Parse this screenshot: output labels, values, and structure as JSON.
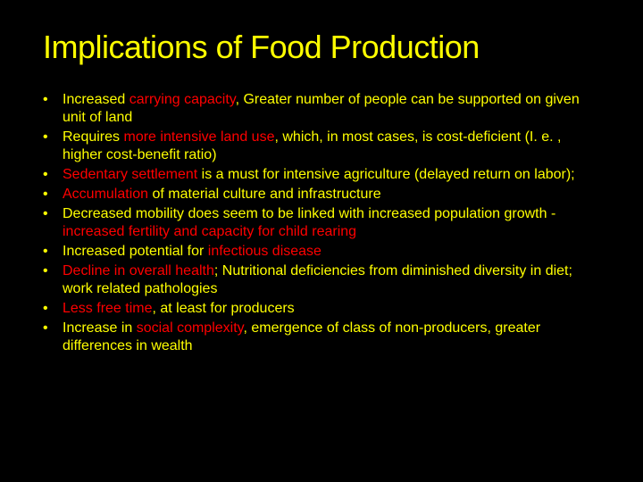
{
  "slide": {
    "title": "Implications of Food Production",
    "background_color": "#000000",
    "title_color": "#ffff00",
    "text_color": "#ffff00",
    "emphasis_color": "#ff0000",
    "title_fontsize": 36,
    "body_fontsize": 16,
    "bullets": [
      {
        "segments": [
          {
            "text": "Increased ",
            "color": "#ffff00"
          },
          {
            "text": "carrying capacity",
            "color": "#ff0000"
          },
          {
            "text": ", Greater number of people can be supported on given unit of land",
            "color": "#ffff00"
          }
        ]
      },
      {
        "segments": [
          {
            "text": "Requires ",
            "color": "#ffff00"
          },
          {
            "text": "more intensive land use",
            "color": "#ff0000"
          },
          {
            "text": ", which, in most cases, is cost-deficient (I. e. , higher cost-benefit ratio)",
            "color": "#ffff00"
          }
        ]
      },
      {
        "segments": [
          {
            "text": "Sedentary settlement",
            "color": "#ff0000"
          },
          {
            "text": " is a must for intensive agriculture (delayed return on labor);",
            "color": "#ffff00"
          }
        ]
      },
      {
        "segments": [
          {
            "text": "Accumulation",
            "color": "#ff0000"
          },
          {
            "text": " of material culture and infrastructure",
            "color": "#ffff00"
          }
        ]
      },
      {
        "segments": [
          {
            "text": "Decreased mobility does seem to be linked with increased population growth - ",
            "color": "#ffff00"
          },
          {
            "text": "increased fertility and capacity for child rearing",
            "color": "#ff0000"
          }
        ]
      },
      {
        "segments": [
          {
            "text": "Increased potential for ",
            "color": "#ffff00"
          },
          {
            "text": "infectious disease",
            "color": "#ff0000"
          }
        ]
      },
      {
        "segments": [
          {
            "text": "Decline in overall health",
            "color": "#ff0000"
          },
          {
            "text": "; Nutritional deficiencies from diminished diversity in diet; work related pathologies",
            "color": "#ffff00"
          }
        ]
      },
      {
        "segments": [
          {
            "text": "Less free time",
            "color": "#ff0000"
          },
          {
            "text": ", at least for producers",
            "color": "#ffff00"
          }
        ]
      },
      {
        "segments": [
          {
            "text": "Increase in ",
            "color": "#ffff00"
          },
          {
            "text": "social complexity",
            "color": "#ff0000"
          },
          {
            "text": ", emergence of class of non-producers, greater differences in wealth",
            "color": "#ffff00"
          }
        ]
      }
    ],
    "bullet_marker": "•"
  }
}
